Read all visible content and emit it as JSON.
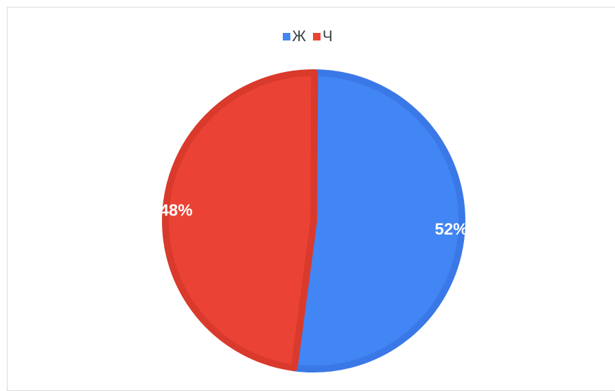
{
  "chart_data": {
    "type": "pie",
    "legend_position": "top",
    "slices": [
      {
        "label": "Ж",
        "value": 52,
        "display": "52%",
        "color": "#4285f4",
        "edge_color": "#3b78e7"
      },
      {
        "label": "Ч",
        "value": 48,
        "display": "48%",
        "color": "#ea4335",
        "edge_color": "#d93a2c"
      }
    ]
  }
}
